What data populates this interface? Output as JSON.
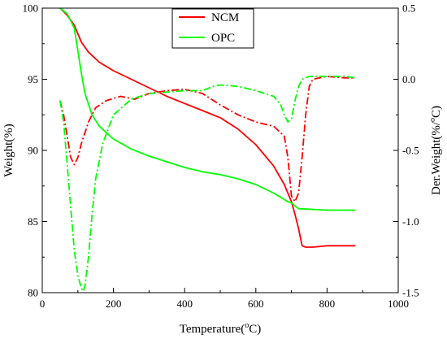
{
  "chart_data": {
    "type": "line",
    "xlabel": "Temperature(°C)",
    "xlabel_parts": {
      "prefix": "Temperature(",
      "sup": "o",
      "suffix": "C)"
    },
    "ylabel_left": "Weight(%)",
    "ylabel_right": "Der.Weight(%/°C)",
    "ylabel_right_parts": {
      "prefix": "Der.Weight(%/",
      "sup": "o",
      "suffix": "C)"
    },
    "xlim": [
      0,
      1000
    ],
    "ylim_left": [
      80,
      100
    ],
    "ylim_right": [
      -1.5,
      0.5
    ],
    "x_ticks": [
      "0",
      "200",
      "400",
      "600",
      "800",
      "1000"
    ],
    "y_left_ticks": [
      "80",
      "85",
      "90",
      "95",
      "100"
    ],
    "y_right_ticks": [
      "-1.5",
      "-1.0",
      "-0.5",
      "0.0",
      "0.5"
    ],
    "legend_position": "top-center",
    "grid": false,
    "series": [
      {
        "name": "NCM",
        "kind": "weight",
        "axis": "left",
        "style": "solid",
        "color": "#ff0000",
        "x": [
          50,
          70,
          90,
          110,
          130,
          160,
          200,
          250,
          300,
          350,
          400,
          450,
          500,
          550,
          600,
          650,
          680,
          700,
          710,
          720,
          730,
          740,
          760,
          800,
          850,
          880
        ],
        "y": [
          100,
          99.5,
          98.8,
          97.6,
          96.9,
          96.2,
          95.6,
          95.0,
          94.4,
          93.8,
          93.3,
          92.8,
          92.3,
          91.5,
          90.4,
          88.9,
          87.6,
          86.4,
          85.5,
          84.5,
          83.3,
          83.2,
          83.2,
          83.3,
          83.3,
          83.3
        ]
      },
      {
        "name": "OPC",
        "kind": "weight",
        "axis": "left",
        "style": "solid",
        "color": "#00ff00",
        "x": [
          50,
          70,
          90,
          100,
          110,
          120,
          140,
          160,
          200,
          250,
          300,
          350,
          400,
          450,
          500,
          550,
          600,
          650,
          690,
          700,
          710,
          720,
          800,
          880
        ],
        "y": [
          100,
          99.6,
          98.6,
          97.0,
          95.4,
          94.0,
          92.5,
          91.7,
          90.8,
          90.1,
          89.6,
          89.2,
          88.8,
          88.5,
          88.3,
          88.0,
          87.6,
          87.0,
          86.4,
          86.3,
          86.1,
          85.9,
          85.8,
          85.8
        ]
      },
      {
        "name": "NCM",
        "kind": "derivative",
        "axis": "right",
        "style": "dashdot",
        "color": "#ff0000",
        "x": [
          50,
          60,
          70,
          80,
          90,
          100,
          110,
          130,
          150,
          180,
          220,
          260,
          300,
          350,
          400,
          450,
          500,
          550,
          600,
          650,
          680,
          690,
          700,
          710,
          720,
          730,
          740,
          750,
          760,
          800,
          850,
          880
        ],
        "y": [
          -0.15,
          -0.25,
          -0.4,
          -0.55,
          -0.6,
          -0.55,
          -0.45,
          -0.3,
          -0.2,
          -0.15,
          -0.12,
          -0.14,
          -0.1,
          -0.08,
          -0.07,
          -0.1,
          -0.18,
          -0.25,
          -0.3,
          -0.33,
          -0.4,
          -0.55,
          -0.82,
          -0.86,
          -0.8,
          -0.55,
          -0.25,
          -0.05,
          0.0,
          0.02,
          0.01,
          0.01
        ]
      },
      {
        "name": "OPC",
        "kind": "derivative",
        "axis": "right",
        "style": "dashdot",
        "color": "#00ff00",
        "x": [
          50,
          60,
          70,
          80,
          90,
          100,
          110,
          115,
          120,
          130,
          140,
          150,
          170,
          200,
          250,
          300,
          350,
          400,
          450,
          480,
          500,
          550,
          600,
          650,
          670,
          680,
          690,
          700,
          710,
          720,
          730,
          750,
          800,
          850,
          880
        ],
        "y": [
          -0.15,
          -0.3,
          -0.6,
          -0.9,
          -1.2,
          -1.38,
          -1.47,
          -1.49,
          -1.45,
          -1.25,
          -0.95,
          -0.7,
          -0.45,
          -0.25,
          -0.14,
          -0.1,
          -0.09,
          -0.08,
          -0.08,
          -0.05,
          -0.04,
          -0.05,
          -0.08,
          -0.12,
          -0.18,
          -0.25,
          -0.3,
          -0.28,
          -0.15,
          -0.05,
          0.0,
          0.02,
          0.02,
          0.02,
          0.01
        ]
      }
    ],
    "legend": [
      {
        "label": "NCM",
        "color": "#ff0000"
      },
      {
        "label": "OPC",
        "color": "#00ff00"
      }
    ]
  }
}
